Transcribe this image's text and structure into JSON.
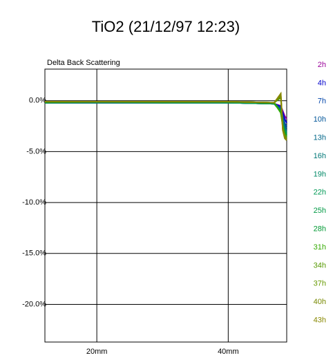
{
  "chart_data": {
    "type": "line",
    "title": "TiO2 (21/12/97 12:23)",
    "y_label": "Delta Back Scattering",
    "x": [
      12.1,
      20,
      30,
      40,
      47,
      48,
      48.3,
      48.6,
      48.9
    ],
    "xlim": [
      12.1,
      48.9
    ],
    "xticks": [
      {
        "value": 20,
        "label": "20mm"
      },
      {
        "value": 40,
        "label": "40mm"
      }
    ],
    "ylim": [
      -23.7,
      3.1
    ],
    "yticks": [
      {
        "value": 0,
        "label": "0.0%"
      },
      {
        "value": -5,
        "label": "-5.0%"
      },
      {
        "value": -10,
        "label": "-10.0%"
      },
      {
        "value": -15,
        "label": "-15.0%"
      },
      {
        "value": -20,
        "label": "-20.0%"
      }
    ],
    "grid": true,
    "series": [
      {
        "name": "2h",
        "color": "#990099",
        "values": [
          -0.2,
          -0.2,
          -0.2,
          -0.2,
          -0.3,
          -0.5,
          -1.0,
          -1.5,
          -1.8
        ]
      },
      {
        "name": "4h",
        "color": "#0000cc",
        "values": [
          -0.2,
          -0.2,
          -0.2,
          -0.2,
          -0.3,
          -0.6,
          -1.2,
          -1.8,
          -2.2
        ]
      },
      {
        "name": "7h",
        "color": "#0044aa",
        "values": [
          -0.2,
          -0.2,
          -0.2,
          -0.2,
          -0.3,
          -0.7,
          -1.5,
          -2.2,
          -2.5
        ]
      },
      {
        "name": "10h",
        "color": "#005599",
        "values": [
          -0.2,
          -0.2,
          -0.2,
          -0.2,
          -0.3,
          -0.8,
          -1.7,
          -2.4,
          -2.7
        ]
      },
      {
        "name": "13h",
        "color": "#006688",
        "values": [
          -0.2,
          -0.2,
          -0.2,
          -0.2,
          -0.3,
          -0.9,
          -1.9,
          -2.6,
          -2.9
        ]
      },
      {
        "name": "16h",
        "color": "#007777",
        "values": [
          -0.2,
          -0.2,
          -0.2,
          -0.2,
          -0.3,
          -1.0,
          -2.0,
          -2.8,
          -3.0
        ]
      },
      {
        "name": "19h",
        "color": "#008866",
        "values": [
          -0.2,
          -0.2,
          -0.2,
          -0.2,
          -0.3,
          -1.0,
          -2.1,
          -2.9,
          -3.1
        ]
      },
      {
        "name": "22h",
        "color": "#009955",
        "values": [
          -0.2,
          -0.1,
          -0.2,
          -0.2,
          -0.3,
          -1.1,
          -2.2,
          -3.0,
          -3.2
        ]
      },
      {
        "name": "25h",
        "color": "#009944",
        "values": [
          -0.2,
          -0.1,
          -0.2,
          -0.1,
          -0.3,
          -1.1,
          -2.3,
          -3.1,
          -3.3
        ]
      },
      {
        "name": "28h",
        "color": "#009933",
        "values": [
          -0.2,
          -0.1,
          -0.1,
          -0.1,
          -0.2,
          -1.2,
          -2.4,
          -3.2,
          -3.4
        ]
      },
      {
        "name": "31h",
        "color": "#33aa00",
        "values": [
          -0.1,
          -0.1,
          -0.1,
          -0.1,
          -0.2,
          -1.2,
          -2.5,
          -3.3,
          -3.5
        ]
      },
      {
        "name": "34h",
        "color": "#559900",
        "values": [
          -0.1,
          -0.1,
          -0.1,
          -0.1,
          -0.2,
          0.3,
          -2.6,
          -3.4,
          -3.6
        ]
      },
      {
        "name": "37h",
        "color": "#669900",
        "values": [
          -0.1,
          -0.1,
          -0.1,
          -0.1,
          -0.2,
          0.5,
          -2.7,
          -3.5,
          -3.7
        ]
      },
      {
        "name": "40h",
        "color": "#778800",
        "values": [
          -0.1,
          -0.1,
          -0.1,
          -0.1,
          -0.2,
          0.6,
          -2.8,
          -3.6,
          -3.8
        ]
      },
      {
        "name": "43h",
        "color": "#888800",
        "values": [
          -0.1,
          -0.1,
          -0.1,
          -0.1,
          -0.2,
          0.7,
          -2.9,
          -3.7,
          -3.9
        ]
      }
    ]
  }
}
